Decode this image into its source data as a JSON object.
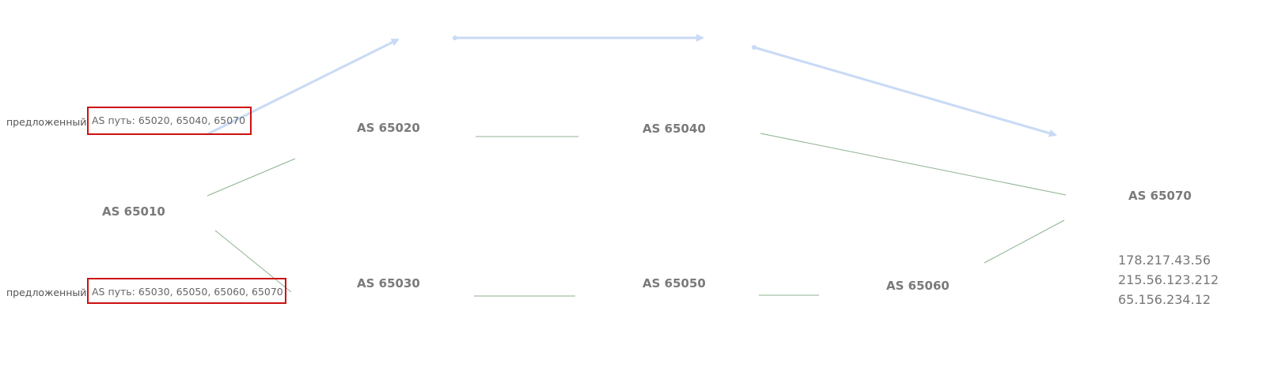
{
  "nodes": {
    "as65010": "AS 65010",
    "as65020": "AS 65020",
    "as65030": "AS 65030",
    "as65040": "AS 65040",
    "as65050": "AS 65050",
    "as65060": "AS 65060",
    "as65070": "AS 65070"
  },
  "proposals": {
    "upper": {
      "prefix": "предложенный",
      "path": "AS путь: 65020, 65040, 65070"
    },
    "lower": {
      "prefix": "предложенный",
      "path": "AS путь: 65030, 65050, 65060, 65070"
    }
  },
  "prefixes": [
    "178.217.43.56",
    "215.56.123.212",
    "65.156.234.12"
  ],
  "colors": {
    "link_line": "#8fb28f",
    "arrow": "#c8daf5",
    "highlight_box": "#cc1111",
    "node_text": "#7a7a7a"
  }
}
